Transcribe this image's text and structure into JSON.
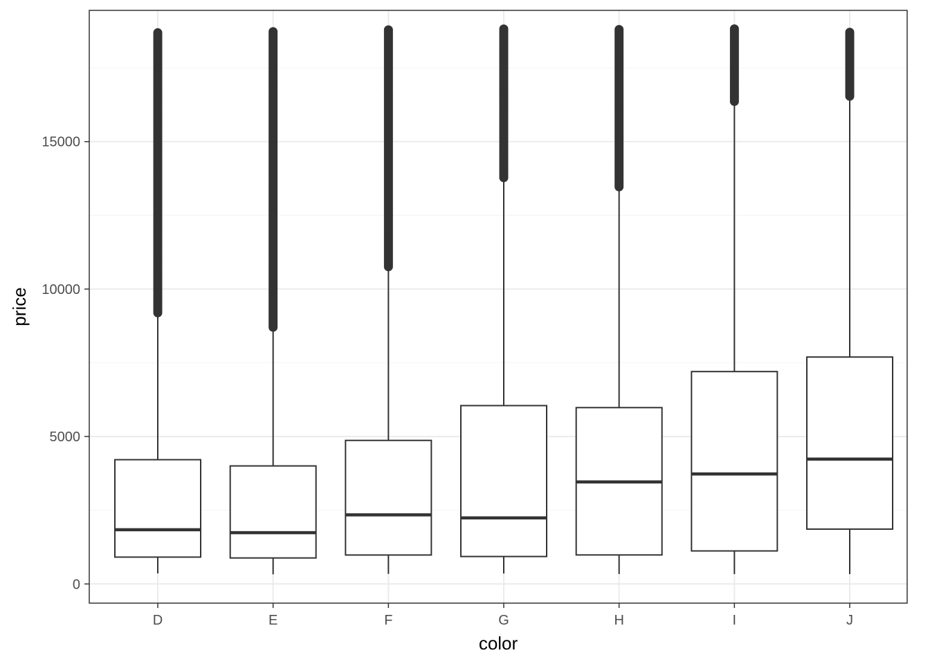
{
  "chart_data": {
    "type": "boxplot",
    "xlabel": "color",
    "ylabel": "price",
    "categories": [
      "D",
      "E",
      "F",
      "G",
      "H",
      "I",
      "J"
    ],
    "ylim": [
      -650,
      19450
    ],
    "yticks": [
      0,
      5000,
      10000,
      15000
    ],
    "ytick_labels": [
      "0",
      "5000",
      "10000",
      "15000"
    ],
    "grid": true,
    "legend": "none",
    "colors": {
      "panel_border": "#333333",
      "grid_major": "#ebebeb",
      "grid_minor": "#f5f5f5",
      "box": "#333333"
    },
    "boxes": [
      {
        "category": "D",
        "whisker_low": 357,
        "q1": 911,
        "median": 1838,
        "q3": 4214,
        "whisker_high": 9165,
        "outlier_range": [
          9165,
          18693
        ]
      },
      {
        "category": "E",
        "whisker_low": 326,
        "q1": 882,
        "median": 1739,
        "q3": 4003,
        "whisker_high": 8700,
        "outlier_range": [
          8700,
          18731
        ]
      },
      {
        "category": "F",
        "whisker_low": 342,
        "q1": 982,
        "median": 2344,
        "q3": 4868,
        "whisker_high": 10700,
        "outlier_range": [
          10700,
          18791
        ]
      },
      {
        "category": "G",
        "whisker_low": 354,
        "q1": 931,
        "median": 2242,
        "q3": 6048,
        "whisker_high": 13750,
        "outlier_range": [
          13750,
          18818
        ]
      },
      {
        "category": "H",
        "whisker_low": 337,
        "q1": 984,
        "median": 3460,
        "q3": 5980,
        "whisker_high": 13450,
        "outlier_range": [
          13450,
          18803
        ]
      },
      {
        "category": "I",
        "whisker_low": 334,
        "q1": 1120,
        "median": 3730,
        "q3": 7202,
        "whisker_high": 16350,
        "outlier_range": [
          16350,
          18823
        ]
      },
      {
        "category": "J",
        "whisker_low": 335,
        "q1": 1860,
        "median": 4234,
        "q3": 7695,
        "whisker_high": 16500,
        "outlier_range": [
          16500,
          18710
        ]
      }
    ]
  }
}
